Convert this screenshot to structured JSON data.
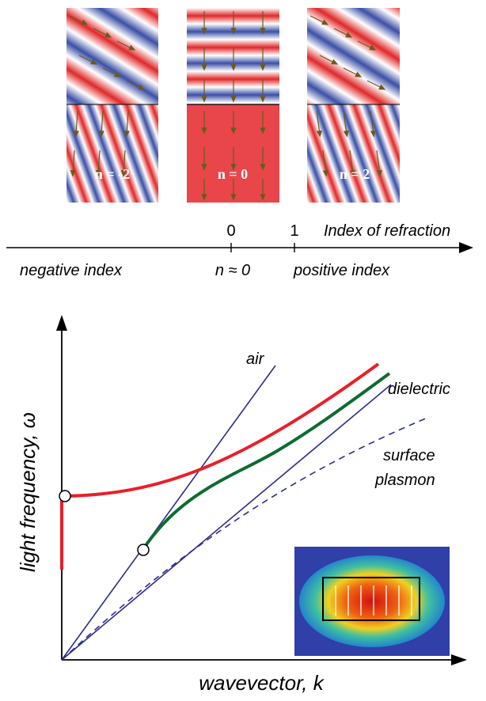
{
  "panels": [
    {
      "label": "n = -2",
      "type": "negative"
    },
    {
      "label": "n = 0",
      "type": "zero"
    },
    {
      "label": "n = 2",
      "type": "positive"
    }
  ],
  "index_axis": {
    "tick_0": "0",
    "tick_1": "1",
    "title": "Index of refraction",
    "left_label": "negative index",
    "center_label": "n ≈ 0",
    "right_label": "positive index"
  },
  "dispersion": {
    "y_label": "light frequency, ω",
    "x_label": "wavevector, k",
    "air_label": "air",
    "dielectric_label": "dielectric",
    "surface_plasmon_label_1": "surface",
    "surface_plasmon_label_2": "plasmon"
  },
  "colors": {
    "wave_red": "#e02828",
    "wave_blue": "#3b4fa6",
    "curve_red": "#e8202a",
    "curve_green": "#0d6b30",
    "line_blue": "#2b2b8f",
    "arrow": "#6b5a1e"
  }
}
